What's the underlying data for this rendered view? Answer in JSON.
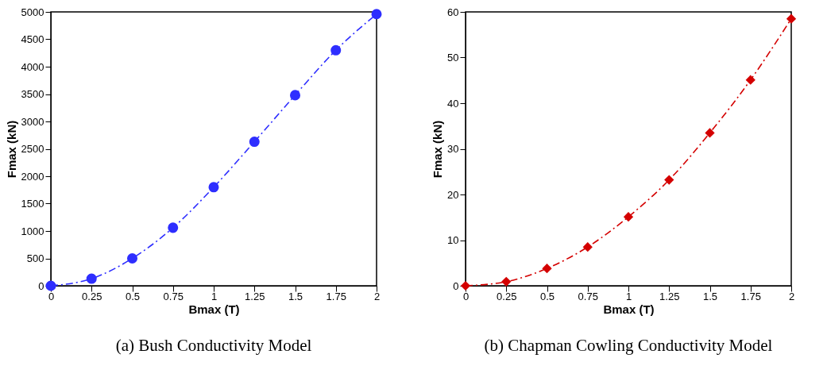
{
  "chart_data": [
    {
      "type": "line",
      "xlabel": "Bmax (T)",
      "ylabel": "Fmax (kN)",
      "x": [
        0,
        0.25,
        0.5,
        0.75,
        1,
        1.25,
        1.5,
        1.75,
        2
      ],
      "series": [
        {
          "color": "#2e2eff",
          "values": [
            0,
            130,
            500,
            1060,
            1800,
            2630,
            3480,
            4300,
            4960
          ]
        }
      ],
      "xlim": [
        0,
        2
      ],
      "ylim": [
        0,
        5000
      ],
      "xticks": [
        0,
        0.25,
        0.5,
        0.75,
        1,
        1.25,
        1.5,
        1.75,
        2
      ],
      "yticks": [
        0,
        500,
        1000,
        1500,
        2000,
        2500,
        3000,
        3500,
        4000,
        4500,
        5000
      ],
      "marker": "circle",
      "line_style": "dashed",
      "grid": false,
      "annotations": [
        "(a) Bush Conductivity Model"
      ]
    },
    {
      "type": "line",
      "xlabel": "Bmax (T)",
      "ylabel": "Fmax (kN)",
      "x": [
        0,
        0.25,
        0.5,
        0.75,
        1,
        1.25,
        1.5,
        1.75,
        2
      ],
      "series": [
        {
          "color": "#d40000",
          "values": [
            0,
            0.9,
            3.8,
            8.5,
            15.1,
            23.2,
            33.5,
            45.1,
            58.5
          ]
        }
      ],
      "xlim": [
        0,
        2
      ],
      "ylim": [
        0,
        60
      ],
      "xticks": [
        0,
        0.25,
        0.5,
        0.75,
        1,
        1.25,
        1.5,
        1.75,
        2
      ],
      "yticks": [
        0,
        10,
        20,
        30,
        40,
        50,
        60
      ],
      "marker": "diamond",
      "line_style": "dashed",
      "grid": false,
      "annotations": [
        "(b) Chapman Cowling Conductivity Model"
      ]
    }
  ]
}
